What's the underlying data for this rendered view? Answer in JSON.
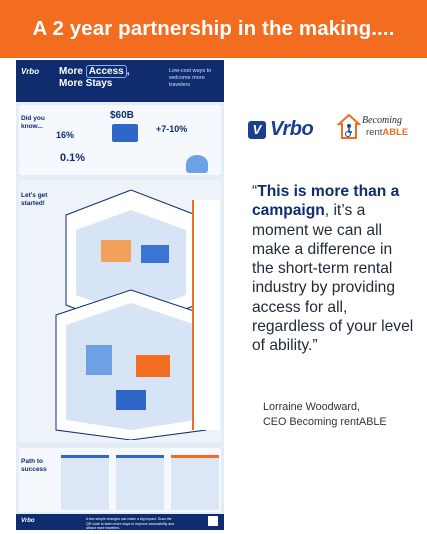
{
  "banner": {
    "title": "A 2 year partnership in the making...."
  },
  "infographic": {
    "brand": "Vrbo",
    "title_line1_a": "More",
    "title_line1_b": "Access",
    "title_line2": "More Stays",
    "subtitle": "Low-cost ways to welcome more travelers",
    "section1": {
      "title": "Did you know...",
      "stats": [
        "16%",
        "$60B",
        "+7-10%",
        "0.1%"
      ]
    },
    "section2": {
      "title": "Let's get started!"
    },
    "section3": {
      "title": "Path to success"
    },
    "footer_brand": "Vrbo",
    "footer_text": "A few simple changes can make a big impact. Scan the QR code to learn more ways to improve accessibility and attract more travelers."
  },
  "logos": {
    "vrbo_mark": "V",
    "vrbo_word": "Vrbo",
    "br_line1": "Becoming",
    "br_line2_a": "rent",
    "br_line2_b": "ABLE"
  },
  "quote": {
    "open": "“",
    "bold": "This is more than a campaign",
    "rest": ", it’s a moment we can all make a difference in the short-term rental industry by providing access for all, regardless of your level of ability.”"
  },
  "attribution": {
    "name": "Lorraine Woodward,",
    "role": "CEO Becoming rentABLE"
  },
  "colors": {
    "banner": "#f26d1f",
    "navy": "#0e2c6e",
    "panel": "#e4ecf6"
  }
}
